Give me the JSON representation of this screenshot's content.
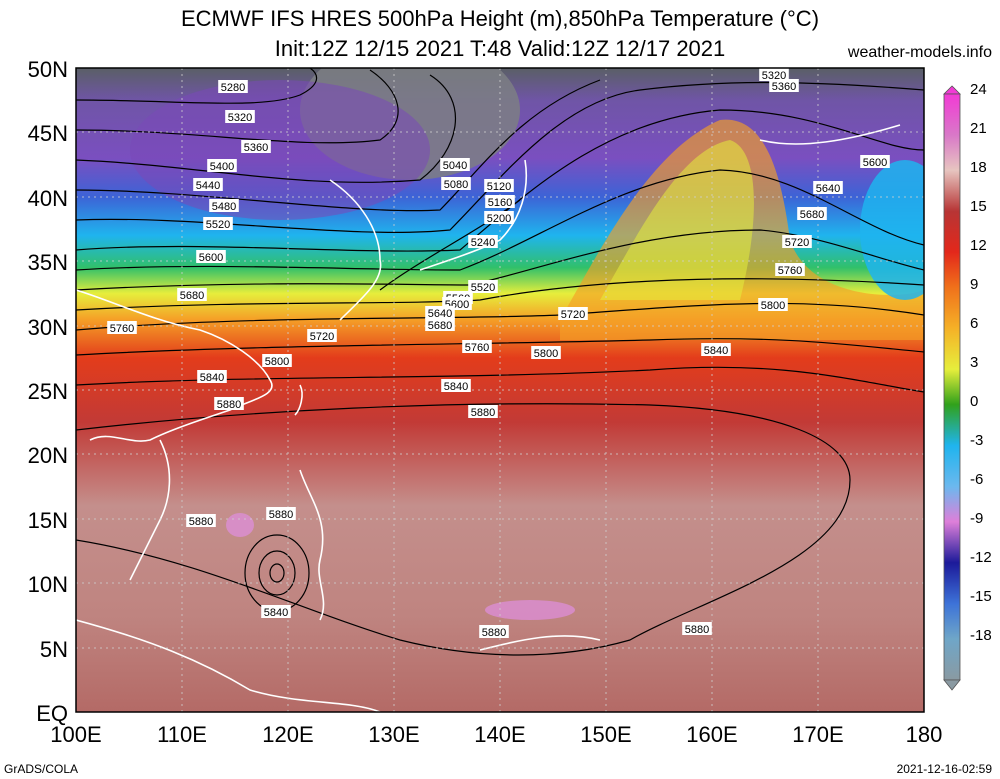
{
  "header": {
    "title_line1": "ECMWF IFS HRES 500hPa Height (m),850hPa Temperature (°C)",
    "title_line2": "Init:12Z 12/15 2021 T:48 Valid:12Z 12/17 2021",
    "site": "weather-models.info"
  },
  "map": {
    "lat_labels": [
      "50N",
      "45N",
      "40N",
      "35N",
      "30N",
      "25N",
      "20N",
      "15N",
      "10N",
      "5N",
      "EQ"
    ],
    "lon_labels": [
      "100E",
      "110E",
      "120E",
      "130E",
      "140E",
      "150E",
      "160E",
      "170E",
      "180"
    ],
    "contour_labels": [
      "5280",
      "5320",
      "5360",
      "5400",
      "5440",
      "5480",
      "5520",
      "5600",
      "5680",
      "5720",
      "5760",
      "5800",
      "5840",
      "5880",
      "5040",
      "5080",
      "5120",
      "5160",
      "5200",
      "5240",
      "5520",
      "5560",
      "5600",
      "5640",
      "5680",
      "5720",
      "5760",
      "5800",
      "5840",
      "5880",
      "5320",
      "5360",
      "5600",
      "5640",
      "5680",
      "5720",
      "5760",
      "5800",
      "5840",
      "5880",
      "5880",
      "5840",
      "5880",
      "5880"
    ]
  },
  "colorbar": {
    "labels": [
      "24",
      "21",
      "18",
      "15",
      "12",
      "9",
      "6",
      "3",
      "0",
      "-3",
      "-6",
      "-9",
      "-12",
      "-15",
      "-18"
    ],
    "colors": [
      "#f23ad5",
      "#c04fa8",
      "#e7c5c0",
      "#b73535",
      "#e3281b",
      "#f0711b",
      "#f5b127",
      "#e6ee3c",
      "#31a11b",
      "#1fb4ee",
      "#6cb8ee",
      "#de7fd9",
      "#1c1a9a",
      "#3d73d8",
      "#8a9aa2"
    ]
  },
  "footer": {
    "left": "GrADS/COLA",
    "right": "2021-12-16-02:59"
  }
}
